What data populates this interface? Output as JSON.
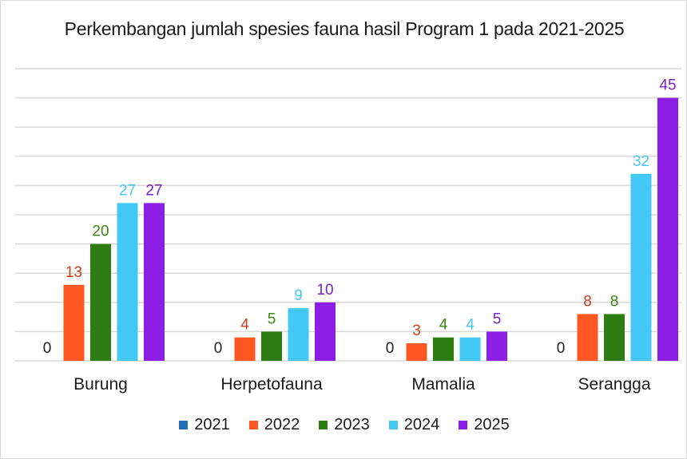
{
  "chart_data": {
    "type": "bar",
    "title": "Perkembangan jumlah spesies fauna hasil Program 1 pada 2021-2025",
    "categories": [
      "Burung",
      "Herpetofauna",
      "Mamalia",
      "Serangga"
    ],
    "series": [
      {
        "name": "2021",
        "color": "#1f6fb4",
        "values": [
          0,
          0,
          0,
          0
        ]
      },
      {
        "name": "2022",
        "color": "#ff5722",
        "values": [
          13,
          4,
          3,
          8
        ]
      },
      {
        "name": "2023",
        "color": "#2e7d12",
        "values": [
          20,
          5,
          4,
          8
        ]
      },
      {
        "name": "2024",
        "color": "#43c8f5",
        "values": [
          27,
          9,
          4,
          32
        ]
      },
      {
        "name": "2025",
        "color": "#8c1ee6",
        "values": [
          27,
          10,
          5,
          45
        ]
      }
    ],
    "label_colors": {
      "2021": "#222222",
      "2022": "#c8401a",
      "2023": "#3a8a10",
      "2024": "#43c8f5",
      "2025": "#7a22c8"
    },
    "data_labels": [
      [
        "0",
        "13",
        "20",
        "27",
        "27"
      ],
      [
        "0",
        "4",
        "5",
        "9",
        "10"
      ],
      [
        "0",
        "3",
        "4",
        "4",
        "5"
      ],
      [
        "0",
        "8",
        "8",
        "32",
        "45"
      ]
    ],
    "xlabel": "",
    "ylabel": "",
    "ylim": [
      0,
      50
    ],
    "gridlines": 10,
    "grid": true,
    "legend_position": "bottom"
  }
}
